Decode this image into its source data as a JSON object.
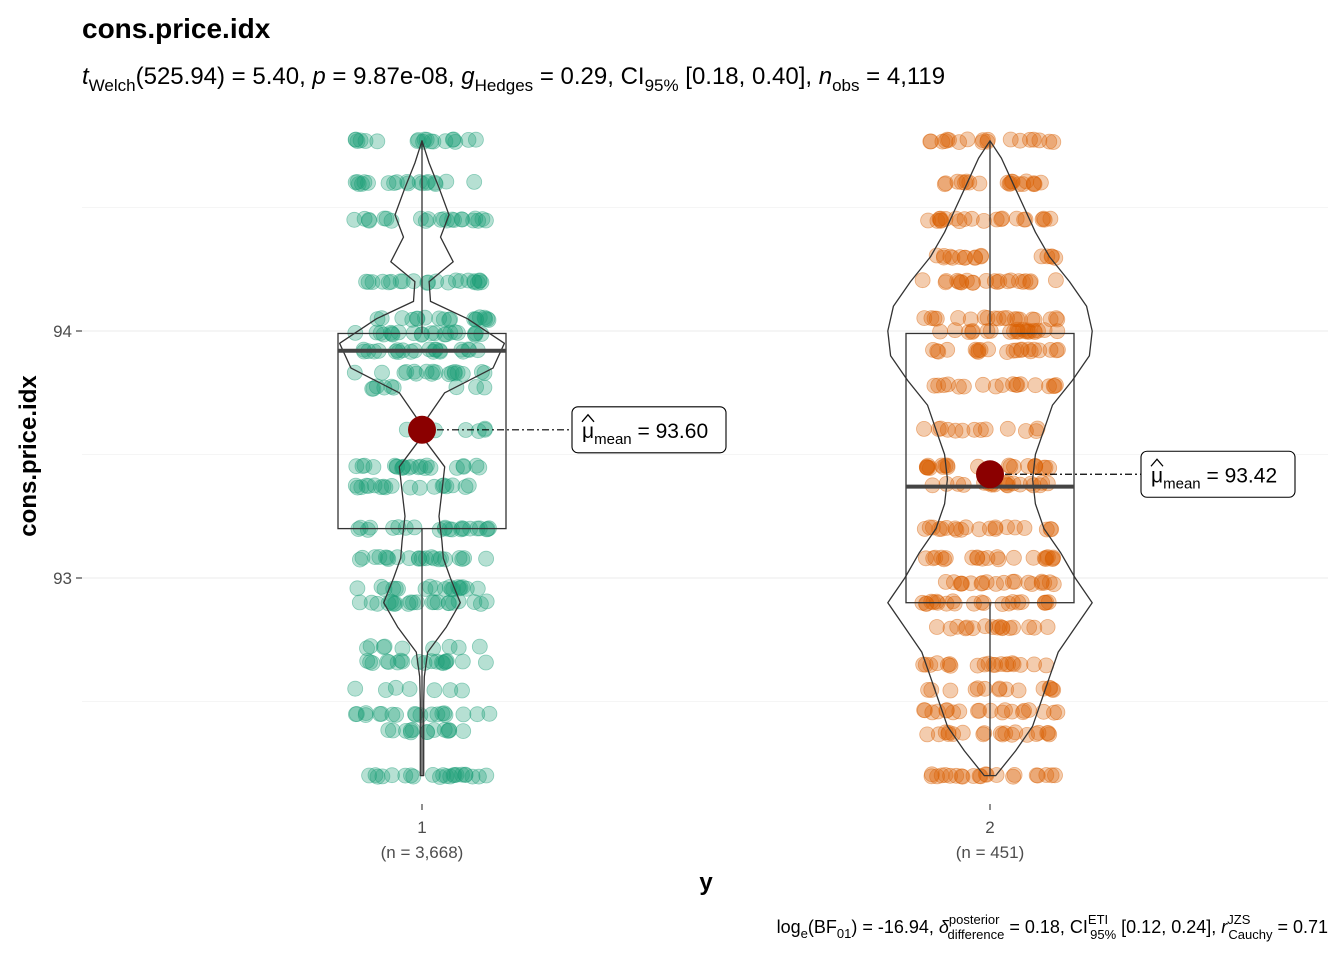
{
  "chart_data": {
    "type": "violin-box-scatter",
    "title": "cons.price.idx",
    "subtitle": {
      "parts": [
        "t",
        "Welch",
        "(525.94) = 5.40, ",
        "p",
        " = 9.87e-08, ",
        "g",
        "Hedges",
        " = 0.29, CI",
        "95%",
        " [0.18, 0.40], ",
        "n",
        "obs",
        " = 4,119"
      ]
    },
    "caption": {
      "parts": [
        "log",
        "e",
        "(BF",
        "01",
        ") = -16.94, ",
        "δ",
        "posterior",
        "difference",
        " = 0.18, CI",
        "ETI",
        "95%",
        " [0.12, 0.24], ",
        "r",
        "JZS",
        "Cauchy",
        " = 0.71"
      ]
    },
    "xlabel": "y",
    "ylabel": "cons.price.idx",
    "ylim": [
      92.06,
      94.85
    ],
    "yticks": [
      93,
      94
    ],
    "grid": true,
    "groups": [
      {
        "category": "1",
        "n_label": "(n = 3,668)",
        "color": "#1b9e77",
        "mean": 93.6,
        "mean_label_value": "93.60",
        "mean_label_sub": "mean",
        "box": {
          "q1": 93.2,
          "median": 93.92,
          "q3": 93.99,
          "lower": 92.2,
          "upper": 94.77
        },
        "violin": [
          [
            92.2,
            0.012
          ],
          [
            92.35,
            0.012
          ],
          [
            92.5,
            0.012
          ],
          [
            92.6,
            0.016
          ],
          [
            92.7,
            0.04
          ],
          [
            92.8,
            0.17
          ],
          [
            92.9,
            0.27
          ],
          [
            93.0,
            0.2
          ],
          [
            93.08,
            0.15
          ],
          [
            93.15,
            0.14
          ],
          [
            93.25,
            0.12
          ],
          [
            93.35,
            0.14
          ],
          [
            93.45,
            0.16
          ],
          [
            93.55,
            0.03
          ],
          [
            93.6,
            0.005
          ],
          [
            93.65,
            0.04
          ],
          [
            93.75,
            0.16
          ],
          [
            93.85,
            0.5
          ],
          [
            93.95,
            0.58
          ],
          [
            94.05,
            0.32
          ],
          [
            94.12,
            0.06
          ],
          [
            94.2,
            0.05
          ],
          [
            94.28,
            0.22
          ],
          [
            94.38,
            0.13
          ],
          [
            94.47,
            0.19
          ],
          [
            94.58,
            0.12
          ],
          [
            94.68,
            0.05
          ],
          [
            94.77,
            0.0
          ]
        ],
        "point_levels": [
          [
            92.2,
            1.0
          ],
          [
            92.38,
            0.55
          ],
          [
            92.45,
            0.85
          ],
          [
            92.55,
            0.15
          ],
          [
            92.66,
            0.85
          ],
          [
            92.72,
            0.3
          ],
          [
            92.9,
            1.0
          ],
          [
            92.96,
            0.85
          ],
          [
            93.08,
            1.0
          ],
          [
            93.2,
            1.0
          ],
          [
            93.37,
            0.85
          ],
          [
            93.45,
            1.0
          ],
          [
            93.6,
            0.1
          ],
          [
            93.77,
            0.3
          ],
          [
            93.83,
            0.75
          ],
          [
            93.92,
            1.0
          ],
          [
            93.99,
            1.0
          ],
          [
            94.05,
            0.85
          ],
          [
            94.2,
            1.0
          ],
          [
            94.45,
            1.0
          ],
          [
            94.6,
            0.85
          ],
          [
            94.77,
            0.85
          ]
        ]
      },
      {
        "category": "2",
        "n_label": "(n = 451)",
        "color": "#d95f02",
        "mean": 93.42,
        "mean_label_value": "93.42",
        "mean_label_sub": "mean",
        "box": {
          "q1": 92.9,
          "median": 93.37,
          "q3": 93.99,
          "lower": 92.2,
          "upper": 94.77
        },
        "violin": [
          [
            92.2,
            0.04
          ],
          [
            92.3,
            0.18
          ],
          [
            92.4,
            0.3
          ],
          [
            92.5,
            0.36
          ],
          [
            92.6,
            0.42
          ],
          [
            92.7,
            0.48
          ],
          [
            92.8,
            0.6
          ],
          [
            92.9,
            0.72
          ],
          [
            93.0,
            0.6
          ],
          [
            93.1,
            0.5
          ],
          [
            93.2,
            0.38
          ],
          [
            93.3,
            0.32
          ],
          [
            93.4,
            0.3
          ],
          [
            93.5,
            0.32
          ],
          [
            93.6,
            0.38
          ],
          [
            93.7,
            0.44
          ],
          [
            93.8,
            0.58
          ],
          [
            93.9,
            0.7
          ],
          [
            94.0,
            0.72
          ],
          [
            94.1,
            0.68
          ],
          [
            94.2,
            0.56
          ],
          [
            94.3,
            0.42
          ],
          [
            94.4,
            0.32
          ],
          [
            94.5,
            0.24
          ],
          [
            94.6,
            0.16
          ],
          [
            94.7,
            0.08
          ],
          [
            94.77,
            0.0
          ]
        ],
        "point_levels": [
          [
            92.2,
            1.0
          ],
          [
            92.37,
            0.9
          ],
          [
            92.46,
            0.9
          ],
          [
            92.55,
            0.6
          ],
          [
            92.65,
            0.9
          ],
          [
            92.8,
            0.7
          ],
          [
            92.9,
            1.0
          ],
          [
            92.98,
            0.9
          ],
          [
            93.08,
            1.0
          ],
          [
            93.2,
            0.9
          ],
          [
            93.38,
            0.9
          ],
          [
            93.45,
            1.0
          ],
          [
            93.6,
            0.5
          ],
          [
            93.78,
            0.8
          ],
          [
            93.92,
            1.0
          ],
          [
            94.0,
            1.0
          ],
          [
            94.05,
            0.9
          ],
          [
            94.2,
            1.0
          ],
          [
            94.3,
            0.7
          ],
          [
            94.45,
            1.0
          ],
          [
            94.6,
            0.9
          ],
          [
            94.77,
            0.85
          ]
        ]
      }
    ]
  }
}
